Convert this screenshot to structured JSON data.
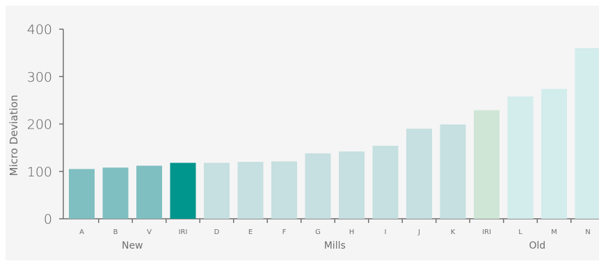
{
  "chart_data": {
    "type": "bar",
    "ylabel": "Micro Deviation",
    "xlabel": "",
    "ylim": [
      0,
      400
    ],
    "yticks": [
      0,
      100,
      200,
      300,
      400
    ],
    "categories": [
      "A",
      "B",
      "V",
      "IRI",
      "D",
      "E",
      "F",
      "G",
      "H",
      "I",
      "J",
      "K",
      "IRI",
      "L",
      "M",
      "N"
    ],
    "values": [
      105,
      108,
      112,
      118,
      118,
      120,
      121,
      138,
      142,
      154,
      190,
      199,
      229,
      258,
      274,
      360
    ],
    "colors": [
      "#80bfc1",
      "#80bfc1",
      "#80bfc1",
      "#00958d",
      "#c6dfe0",
      "#c6dfe0",
      "#c6dfe0",
      "#c6dfe0",
      "#c6dfe0",
      "#c6dfe0",
      "#c6dfe0",
      "#c6dfe0",
      "#cfe6d6",
      "#d3ecec",
      "#d3ecec",
      "#d3ecec"
    ],
    "groups": [
      {
        "label": "New",
        "start": 0,
        "end": 3
      },
      {
        "label": "Mills",
        "start": 4,
        "end": 11
      },
      {
        "label": "Old",
        "start": 12,
        "end": 15
      }
    ]
  }
}
